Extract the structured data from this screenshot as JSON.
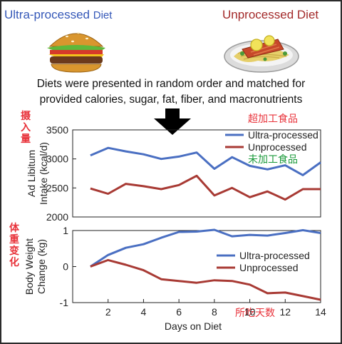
{
  "header": {
    "left_label": "Ultra-processed",
    "left_suffix": "Diet",
    "right_label": "Unprocessed Diet"
  },
  "description": {
    "line1": "Diets were presented in random order and matched for",
    "line2": "provided calories, sugar, fat, fiber, and macronutrients"
  },
  "annotations_cn": {
    "intake": "摄入量",
    "ultra": "超加工食品",
    "unprocessed": "未加工食品",
    "weight_change": "体重变化",
    "days": "所吃天数"
  },
  "colors": {
    "ultra": "#4a6fc2",
    "unprocessed": "#a83a34",
    "axis": "#222222",
    "cn_red": "#e8323a",
    "cn_green": "#1a9a3a"
  },
  "icons": [
    "burger-icon",
    "salmon-dish-icon",
    "down-arrow-icon"
  ],
  "chart_data": [
    {
      "type": "line",
      "ylabel": "Ad Libitum\nIntake (kcal/d)",
      "xlabel": "",
      "xlim": [
        0,
        14
      ],
      "ylim": [
        2000,
        3500
      ],
      "yticks": [
        2000,
        2500,
        3000,
        3500
      ],
      "legend": "top-right",
      "x": [
        1,
        2,
        3,
        4,
        5,
        6,
        7,
        8,
        9,
        10,
        11,
        12,
        13,
        14
      ],
      "series": [
        {
          "name": "Ultra-processed",
          "values": [
            3060,
            3190,
            3130,
            3080,
            3000,
            3040,
            3110,
            2830,
            3030,
            2880,
            2820,
            2890,
            2720,
            2940
          ]
        },
        {
          "name": "Unprocessed",
          "values": [
            2490,
            2400,
            2570,
            2530,
            2480,
            2550,
            2710,
            2370,
            2500,
            2340,
            2440,
            2300,
            2480,
            2480
          ]
        }
      ]
    },
    {
      "type": "line",
      "ylabel": "Body Weight\nChange (kg)",
      "xlabel": "Days on Diet",
      "xlim": [
        0,
        14
      ],
      "ylim": [
        -1,
        1
      ],
      "yticks": [
        -1,
        0,
        1
      ],
      "xticks": [
        2,
        4,
        6,
        8,
        10,
        12,
        14
      ],
      "legend": "center-right",
      "x": [
        1,
        2,
        3,
        4,
        5,
        6,
        7,
        8,
        9,
        10,
        11,
        12,
        13,
        14
      ],
      "series": [
        {
          "name": "Ultra-processed",
          "values": [
            0.0,
            0.32,
            0.52,
            0.62,
            0.8,
            0.96,
            0.97,
            1.02,
            0.84,
            0.88,
            0.86,
            0.93,
            1.01,
            0.93
          ]
        },
        {
          "name": "Unprocessed",
          "values": [
            0.0,
            0.18,
            0.05,
            -0.1,
            -0.35,
            -0.4,
            -0.45,
            -0.38,
            -0.4,
            -0.5,
            -0.74,
            -0.72,
            -0.82,
            -0.92
          ]
        }
      ]
    }
  ]
}
